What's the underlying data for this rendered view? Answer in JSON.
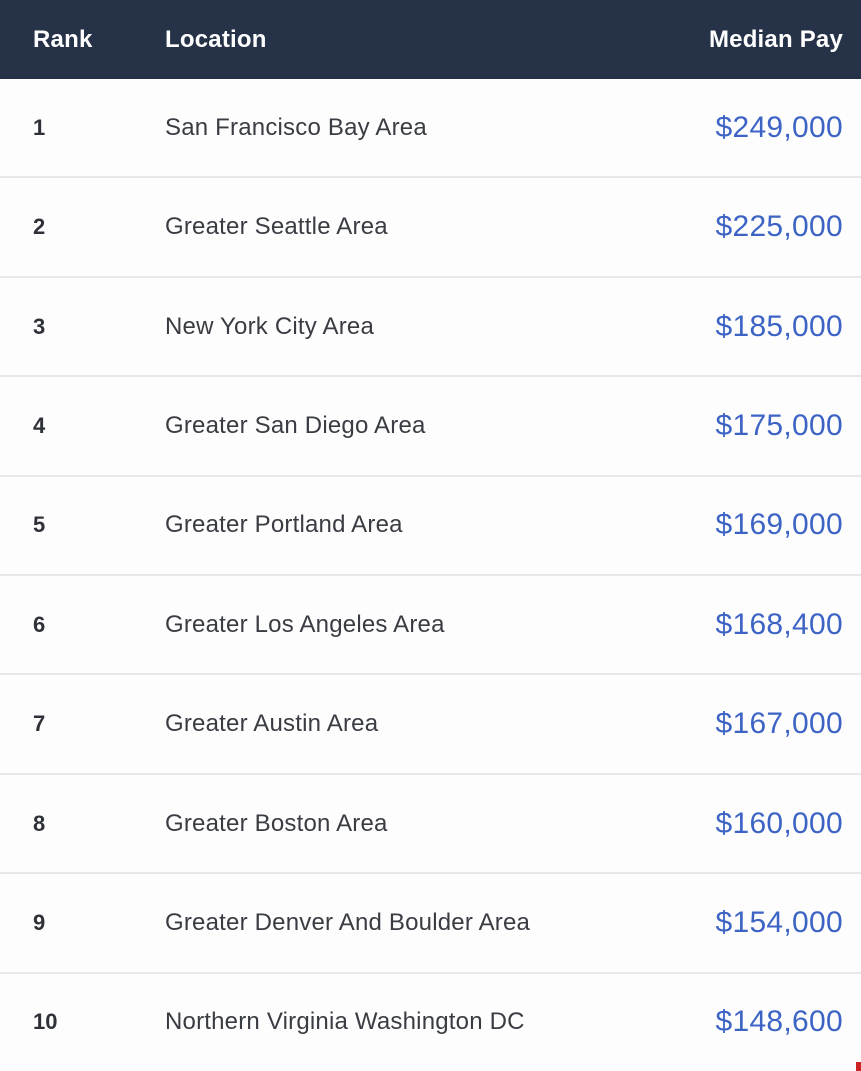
{
  "table": {
    "columns": {
      "rank": "Rank",
      "location": "Location",
      "median_pay": "Median Pay"
    },
    "rows": [
      {
        "rank": "1",
        "location": "San Francisco Bay Area",
        "median_pay": "$249,000"
      },
      {
        "rank": "2",
        "location": "Greater Seattle Area",
        "median_pay": "$225,000"
      },
      {
        "rank": "3",
        "location": "New York City Area",
        "median_pay": "$185,000"
      },
      {
        "rank": "4",
        "location": "Greater San Diego Area",
        "median_pay": "$175,000"
      },
      {
        "rank": "5",
        "location": "Greater Portland Area",
        "median_pay": "$169,000"
      },
      {
        "rank": "6",
        "location": "Greater Los Angeles Area",
        "median_pay": "$168,400"
      },
      {
        "rank": "7",
        "location": "Greater Austin Area",
        "median_pay": "$167,000"
      },
      {
        "rank": "8",
        "location": "Greater Boston Area",
        "median_pay": "$160,000"
      },
      {
        "rank": "9",
        "location": "Greater Denver And Boulder Area",
        "median_pay": "$154,000"
      },
      {
        "rank": "10",
        "location": "Northern Virginia Washington DC",
        "median_pay": "$148,600"
      }
    ]
  },
  "colors": {
    "header_bg": "#263247",
    "header_text": "#ffffff",
    "row_bg": "#fdfdfd",
    "row_text": "#393c42",
    "rank_text": "#2e3138",
    "pay_text": "#3d64c5",
    "divider": "#e8e8e8",
    "artifact_red": "#cc2222"
  }
}
